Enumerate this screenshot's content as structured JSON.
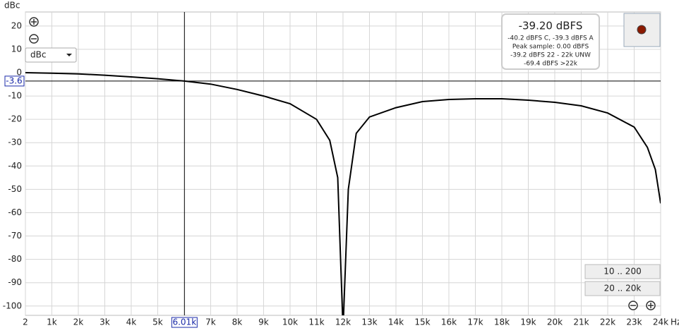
{
  "chart_data": {
    "type": "line",
    "y_label": "dBc",
    "x_label": "Hz",
    "xlim": [
      2,
      24000
    ],
    "ylim": [
      -104,
      26
    ],
    "xticks": [
      {
        "value": 2,
        "label": "2"
      },
      {
        "value": 1000,
        "label": "1k"
      },
      {
        "value": 2000,
        "label": "2k"
      },
      {
        "value": 3000,
        "label": "3k"
      },
      {
        "value": 4000,
        "label": "4k"
      },
      {
        "value": 5000,
        "label": "5k"
      },
      {
        "value": 7000,
        "label": "7k"
      },
      {
        "value": 8000,
        "label": "8k"
      },
      {
        "value": 9000,
        "label": "9k"
      },
      {
        "value": 10000,
        "label": "10k"
      },
      {
        "value": 11000,
        "label": "11k"
      },
      {
        "value": 12000,
        "label": "12k"
      },
      {
        "value": 13000,
        "label": "13k"
      },
      {
        "value": 14000,
        "label": "14k"
      },
      {
        "value": 15000,
        "label": "15k"
      },
      {
        "value": 16000,
        "label": "16k"
      },
      {
        "value": 17000,
        "label": "17k"
      },
      {
        "value": 18000,
        "label": "18k"
      },
      {
        "value": 19000,
        "label": "19k"
      },
      {
        "value": 20000,
        "label": "20k"
      },
      {
        "value": 21000,
        "label": "21k"
      },
      {
        "value": 22000,
        "label": "22k"
      },
      {
        "value": 23000,
        "label": "23k"
      },
      {
        "value": 24000,
        "label": "24k"
      }
    ],
    "yticks": [
      20,
      10,
      0,
      -10,
      -20,
      -30,
      -40,
      -50,
      -60,
      -70,
      -80,
      -90,
      -100
    ],
    "grid": true,
    "cursor_x": {
      "value": 6010,
      "label": "6.01k"
    },
    "cursor_y": -3.6,
    "series": [
      {
        "color": "#000000",
        "x": [
          2,
          1000,
          2000,
          3000,
          4000,
          5000,
          6010,
          7000,
          8000,
          9000,
          10000,
          11000,
          11500,
          11800,
          12000,
          12200,
          12500,
          13000,
          14000,
          15000,
          16000,
          17000,
          18000,
          19000,
          20000,
          21000,
          22000,
          23000,
          23500,
          23800,
          24000
        ],
        "values": [
          0,
          -0.2,
          -0.5,
          -1.1,
          -1.8,
          -2.6,
          -3.6,
          -4.9,
          -7.2,
          -10,
          -13.3,
          -20,
          -29,
          -45,
          -110,
          -50,
          -26,
          -19,
          -15,
          -12.4,
          -11.5,
          -11.2,
          -11.2,
          -11.8,
          -12.7,
          -14.2,
          -17.3,
          -23.3,
          -32,
          -41.5,
          -56
        ]
      }
    ]
  },
  "ui": {
    "dropdown": "dBc",
    "readout": "-39.20 dBFS",
    "readout_lines": [
      "-40.2 dBFS C, -39.3 dBFS A",
      "Peak sample: 0.00 dBFS",
      "-39.2 dBFS 22 - 22k UNW",
      "-69.4 dBFS >22k"
    ],
    "buttons": [
      "10 .. 200",
      "20 .. 20k"
    ]
  }
}
